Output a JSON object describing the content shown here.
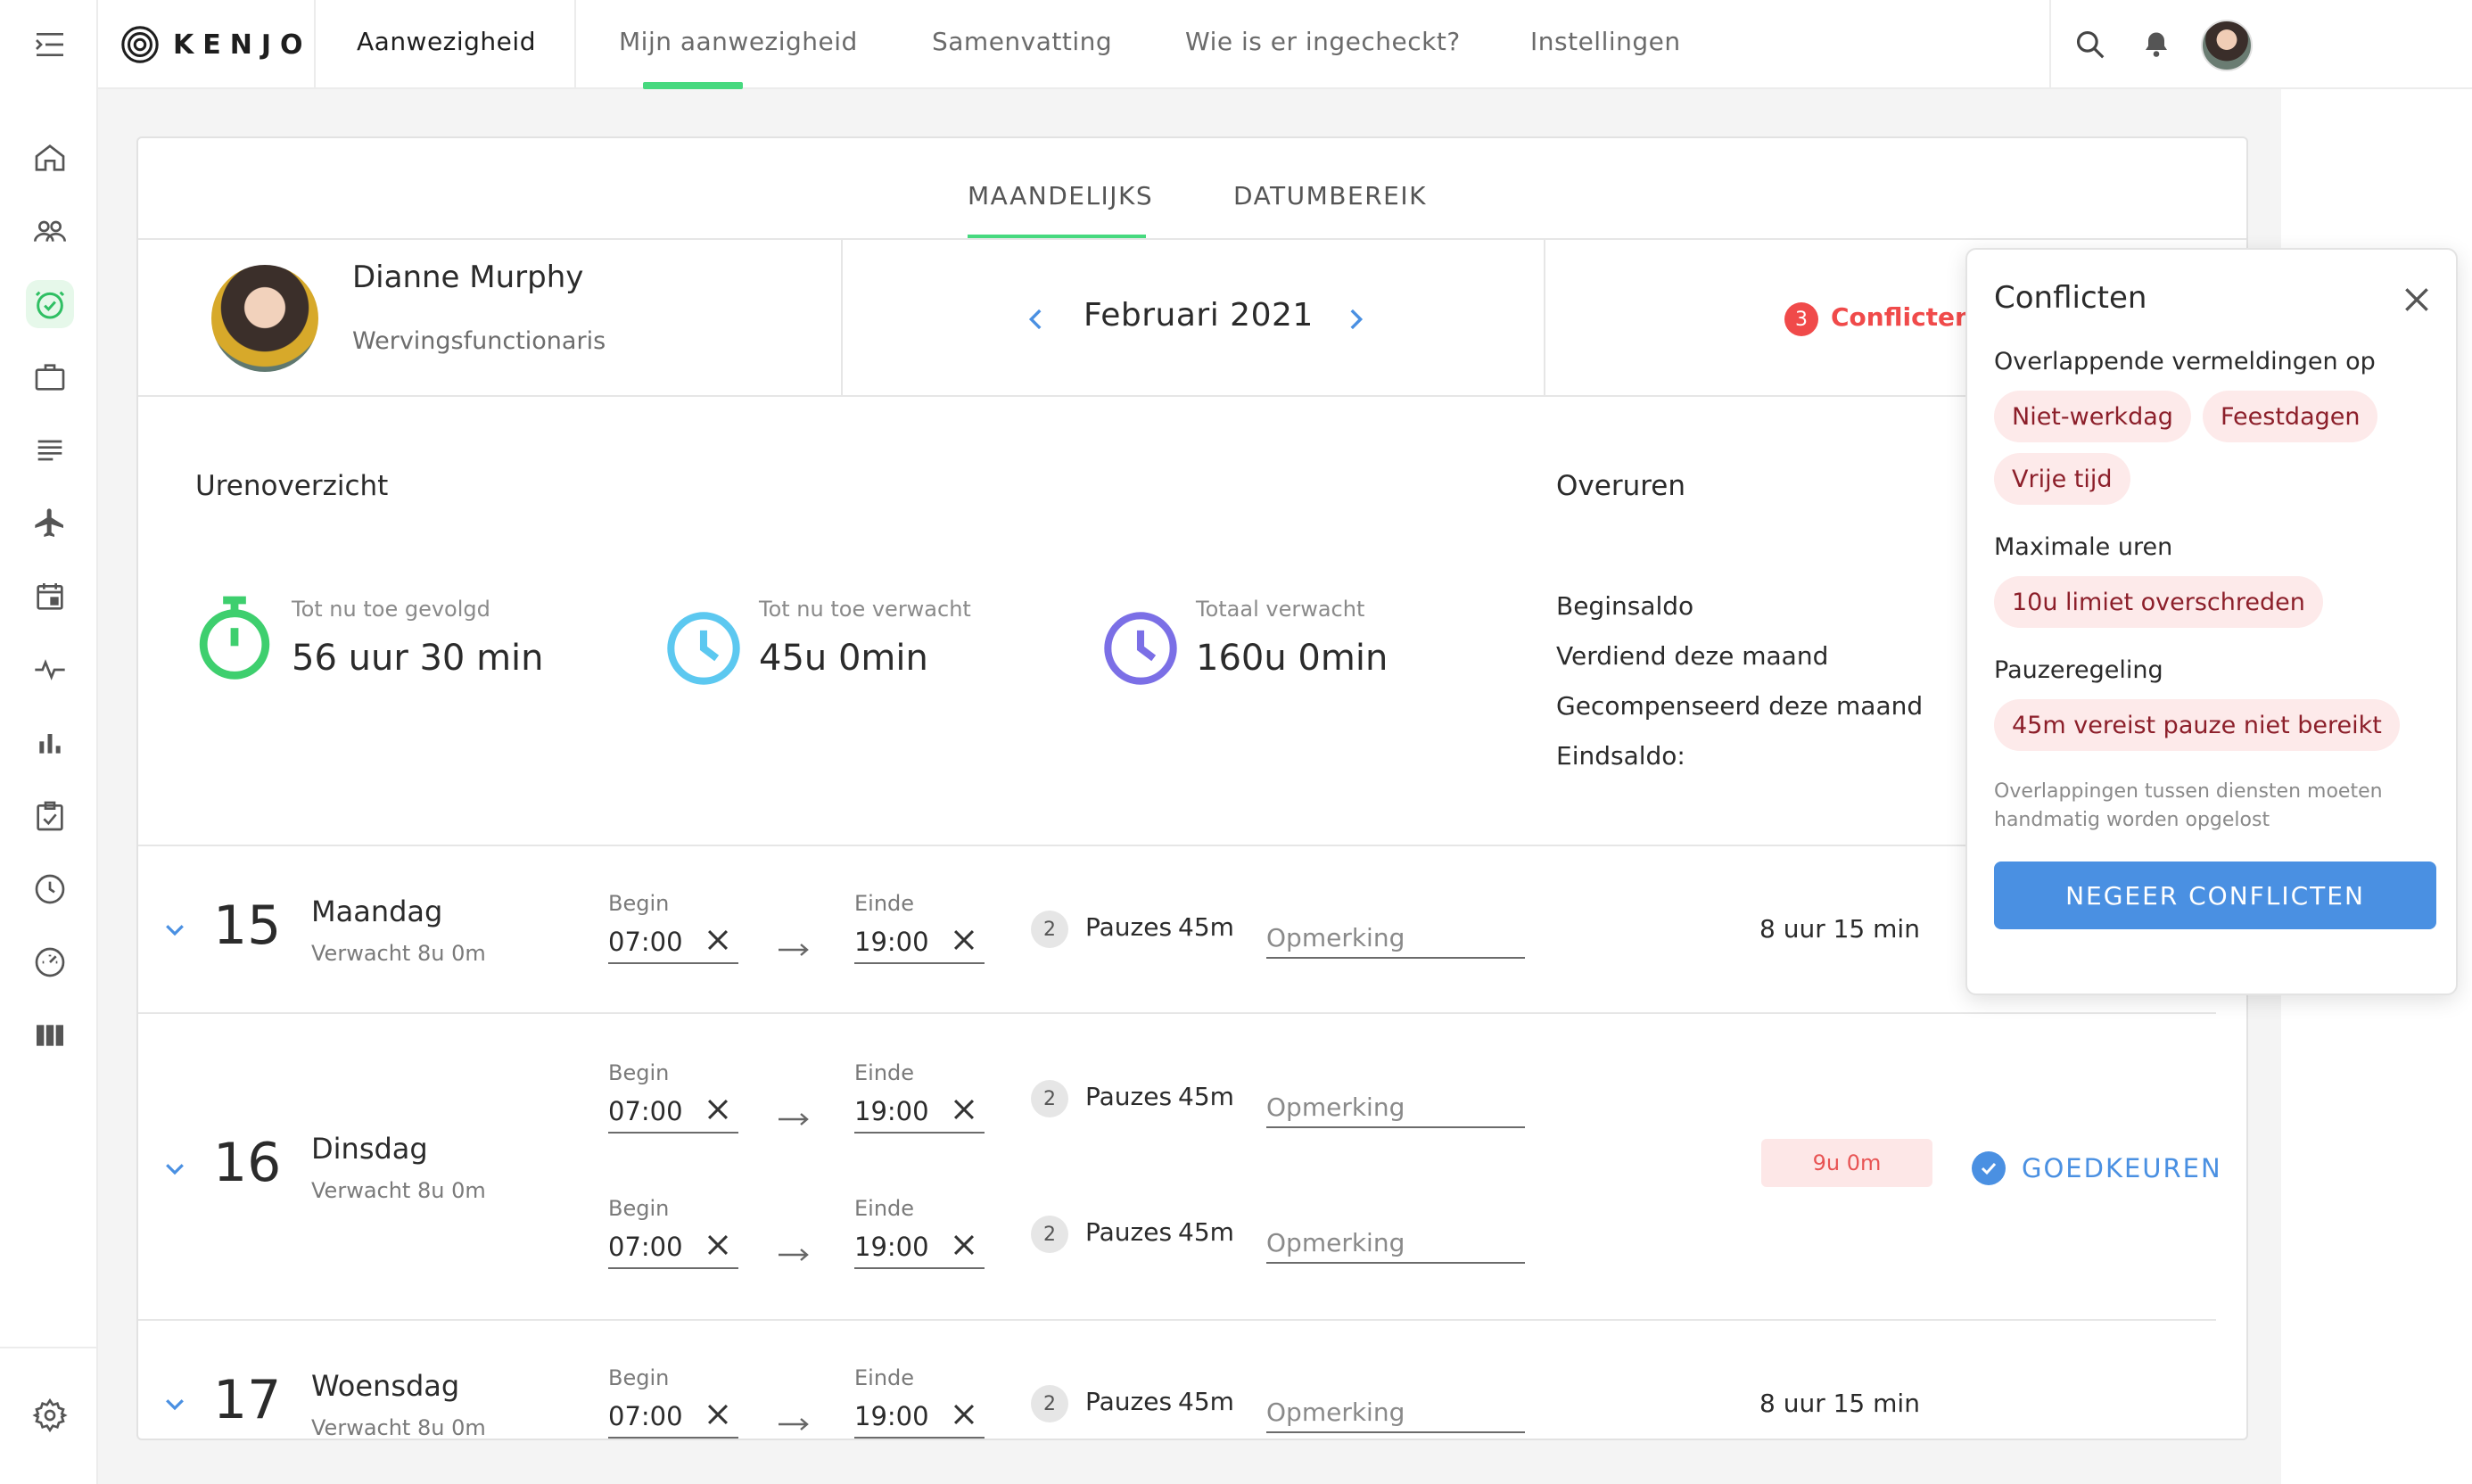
{
  "header": {
    "brand": "KENJO",
    "module": "Aanwezigheid",
    "tabs": [
      "Mijn aanwezigheid",
      "Samenvatting",
      "Wie is er ingecheckt?",
      "Instellingen"
    ],
    "active_tab": "Mijn aanwezigheid",
    "icons": [
      "search-icon",
      "bell-icon",
      "avatar"
    ]
  },
  "sidebar": {
    "icons": [
      "home-icon",
      "people-icon",
      "attendance-icon",
      "briefcase-icon",
      "document-icon",
      "plane-icon",
      "calendar-icon",
      "pulse-icon",
      "bar-chart-icon",
      "checklist-icon",
      "clock-icon",
      "gauge-icon",
      "columns-icon",
      "settings-icon"
    ],
    "active": "attendance-icon"
  },
  "view_tabs": [
    "MAANDELIJKS",
    "DATUMBEREIK"
  ],
  "employee": {
    "name": "Dianne Murphy",
    "role": "Wervingsfunctionaris"
  },
  "period": {
    "label": "Februari 2021"
  },
  "conflicts": {
    "count": "3",
    "label": "Conflicten"
  },
  "overview": {
    "title": "Urenoverzicht",
    "stats": [
      {
        "label": "Tot nu toe gevolgd",
        "value": "56 uur 30 min",
        "color": "#3ecf6e"
      },
      {
        "label": "Tot nu toe verwacht",
        "value": "45u 0min",
        "color": "#5cc8f0"
      },
      {
        "label": "Totaal verwacht",
        "value": "160u 0min",
        "color": "#7b6fe6"
      }
    ]
  },
  "overtime": {
    "title": "Overuren",
    "items": [
      "Beginsaldo",
      "Verdiend deze maand",
      "Gecompenseerd deze maand",
      "Eindsaldo:"
    ]
  },
  "days": [
    {
      "day": "15",
      "name": "Maandag",
      "expected": "Verwacht 8u 0m",
      "entries": [
        {
          "begin_label": "Begin",
          "begin": "07:00",
          "end_label": "Einde",
          "end": "19:00",
          "pauses_count": "2",
          "pauses_label": "Pauzes",
          "pauses_time": "45m",
          "remark_placeholder": "Opmerking"
        }
      ],
      "total": "8 uur 15 min"
    },
    {
      "day": "16",
      "name": "Dinsdag",
      "expected": "Verwacht 8u 0m",
      "entries": [
        {
          "begin_label": "Begin",
          "begin": "07:00",
          "end_label": "Einde",
          "end": "19:00",
          "pauses_count": "2",
          "pauses_label": "Pauzes",
          "pauses_time": "45m",
          "remark_placeholder": "Opmerking"
        },
        {
          "begin_label": "Begin",
          "begin": "07:00",
          "end_label": "Einde",
          "end": "19:00",
          "pauses_count": "2",
          "pauses_label": "Pauzes",
          "pauses_time": "45m",
          "remark_placeholder": "Opmerking"
        }
      ],
      "hours_badge": "9u 0m",
      "approve_label": "GOEDKEUREN"
    },
    {
      "day": "17",
      "name": "Woensdag",
      "expected": "Verwacht 8u 0m",
      "entries": [
        {
          "begin_label": "Begin",
          "begin": "07:00",
          "end_label": "Einde",
          "end": "19:00",
          "pauses_count": "2",
          "pauses_label": "Pauzes",
          "pauses_time": "45m",
          "remark_placeholder": "Opmerking"
        }
      ],
      "total": "8 uur 15 min"
    }
  ],
  "conflict_panel": {
    "title": "Conflicten",
    "groups": [
      {
        "heading": "Overlappende vermeldingen op",
        "chips": [
          "Niet-werkdag",
          "Feestdagen",
          "Vrije tijd"
        ]
      },
      {
        "heading": "Maximale uren",
        "chips": [
          "10u limiet overschreden"
        ]
      },
      {
        "heading": "Pauzeregeling",
        "chips": [
          "45m vereist pauze niet bereikt"
        ]
      }
    ],
    "note": "Overlappingen tussen diensten moeten handmatig worden opgelost",
    "button": "NEGEER CONFLICTEN"
  }
}
